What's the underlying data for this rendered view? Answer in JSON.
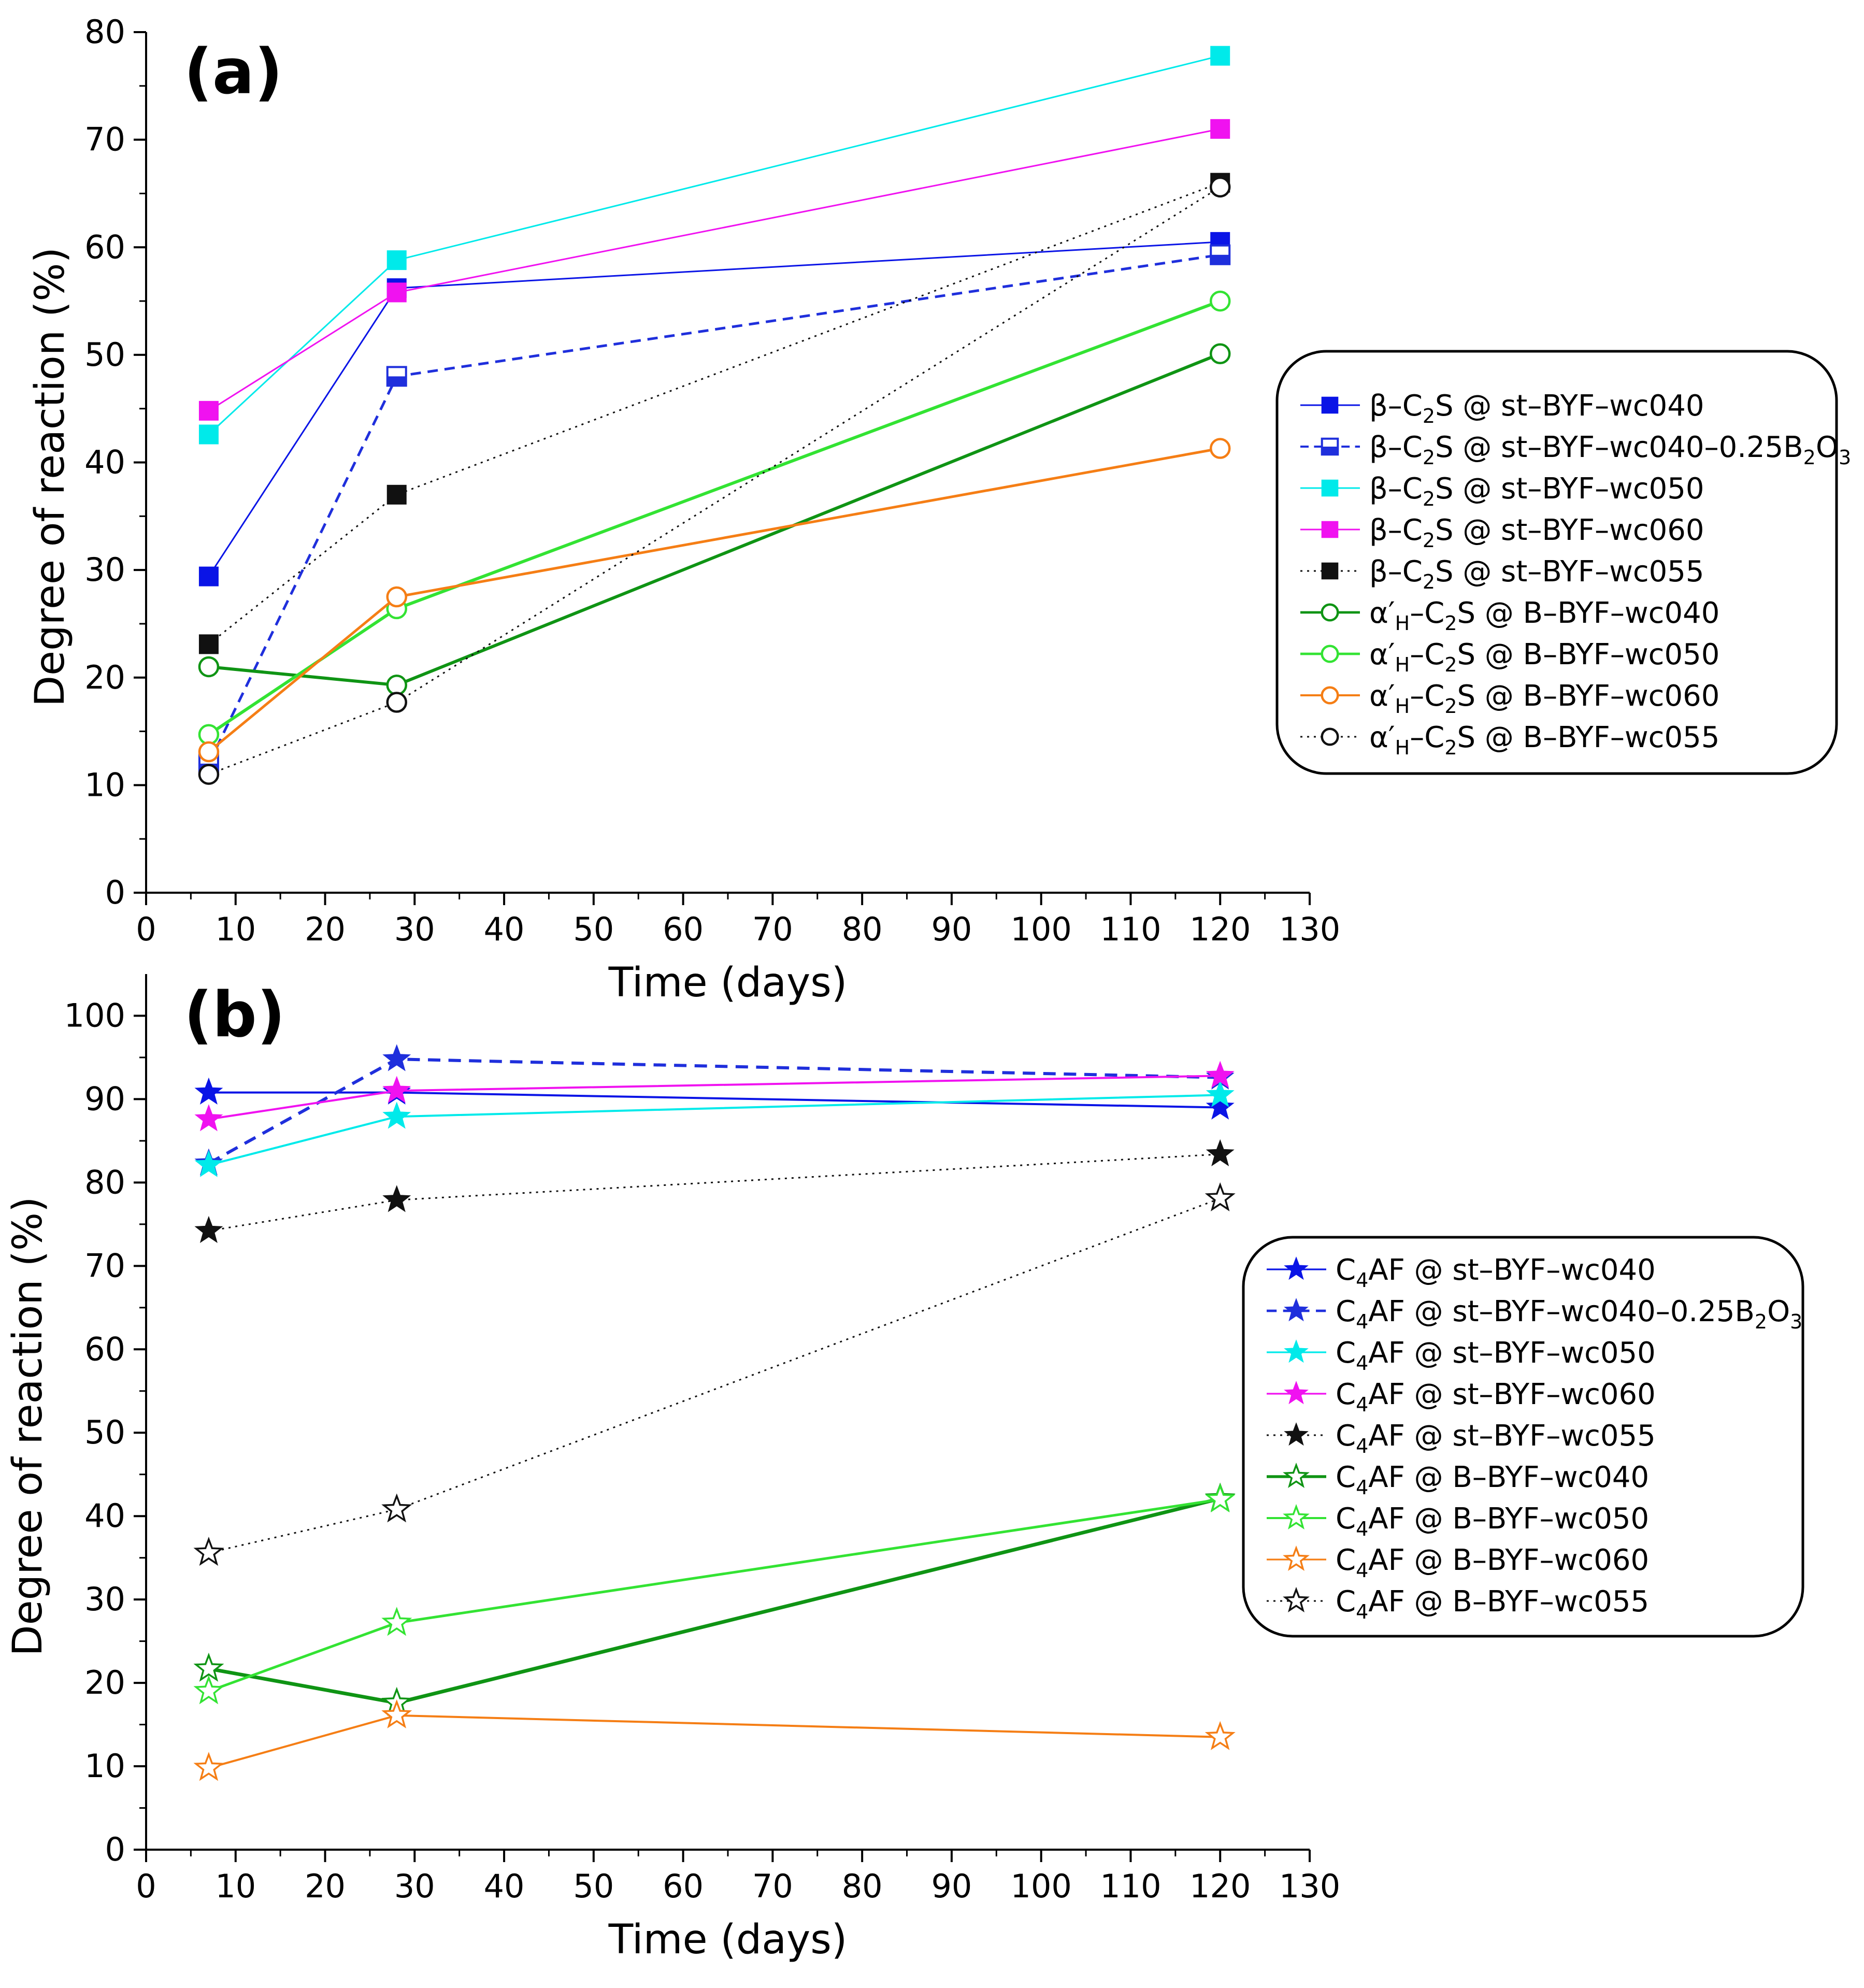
{
  "chart_data": [
    {
      "type": "line",
      "panel_label": "(a)",
      "xlabel": "Time (days)",
      "ylabel": "Degree of reaction (%)",
      "xlim": [
        0,
        130
      ],
      "ylim": [
        0,
        80
      ],
      "xticks": [
        0,
        10,
        20,
        30,
        40,
        50,
        60,
        70,
        80,
        90,
        100,
        110,
        120,
        130
      ],
      "yticks": [
        0,
        10,
        20,
        30,
        40,
        50,
        60,
        70,
        80
      ],
      "x": [
        7,
        28,
        120
      ],
      "legend_position": "right",
      "series": [
        {
          "name": "β–C2S @ st–BYF–wc040",
          "label_parts": [
            "β–C",
            "2",
            "S @ st–BYF–wc040"
          ],
          "values": [
            29.4,
            56.2,
            60.5
          ],
          "color": "#0a14e6",
          "marker": "square",
          "fill": "full",
          "line": "solid",
          "width": 3
        },
        {
          "name": "β–C2S @ st–BYF–wc040–0.25B2O3",
          "label_parts": [
            "β–C",
            "2",
            "S @ st–BYF–wc040–0.25B",
            "2",
            "O",
            "3"
          ],
          "values": [
            12.0,
            48.0,
            59.3
          ],
          "color": "#1f2fdc",
          "marker": "square",
          "fill": "half",
          "line": "dash",
          "width": 5
        },
        {
          "name": "β–C2S @ st–BYF–wc050",
          "label_parts": [
            "β–C",
            "2",
            "S @ st–BYF–wc050"
          ],
          "values": [
            42.6,
            58.8,
            77.8
          ],
          "color": "#00eaea",
          "marker": "square",
          "fill": "full",
          "line": "solid",
          "width": 3
        },
        {
          "name": "β–C2S @ st–BYF–wc060",
          "label_parts": [
            "β–C",
            "2",
            "S @ st–BYF–wc060"
          ],
          "values": [
            44.8,
            55.8,
            71.0
          ],
          "color": "#f012f0",
          "marker": "square",
          "fill": "full",
          "line": "solid",
          "width": 3
        },
        {
          "name": "β–C2S @ st–BYF–wc055",
          "label_parts": [
            "β–C",
            "2",
            "S @ st–BYF–wc055"
          ],
          "values": [
            23.1,
            37.0,
            66.0
          ],
          "color": "#111111",
          "marker": "square",
          "fill": "full",
          "line": "dot",
          "width": 3
        },
        {
          "name": "α'H–C2S @ B–BYF–wc040",
          "label_parts": [
            "α′",
            "H",
            "–C",
            "2",
            "S @ B–BYF–wc040"
          ],
          "values": [
            21.0,
            19.3,
            50.1
          ],
          "color": "#0f9414",
          "marker": "circle",
          "fill": "open",
          "line": "solid",
          "width": 6
        },
        {
          "name": "α'H–C2S @ B–BYF–wc050",
          "label_parts": [
            "α′",
            "H",
            "–C",
            "2",
            "S @ B–BYF–wc050"
          ],
          "values": [
            14.7,
            26.4,
            55.0
          ],
          "color": "#33e333",
          "marker": "circle",
          "fill": "open",
          "line": "solid",
          "width": 6
        },
        {
          "name": "α'H–C2S @ B–BYF–wc060",
          "label_parts": [
            "α′",
            "H",
            "–C",
            "2",
            "S @ B–BYF–wc060"
          ],
          "values": [
            13.1,
            27.5,
            41.3
          ],
          "color": "#f57e15",
          "marker": "circle",
          "fill": "open",
          "line": "solid",
          "width": 5
        },
        {
          "name": "α'H–C2S @ B–BYF–wc055",
          "label_parts": [
            "α′",
            "H",
            "–C",
            "2",
            "S @ B–BYF–wc055"
          ],
          "values": [
            11.0,
            17.7,
            65.6
          ],
          "color": "#111111",
          "marker": "circle",
          "fill": "open",
          "line": "dot",
          "width": 3
        }
      ]
    },
    {
      "type": "line",
      "panel_label": "(b)",
      "xlabel": "Time (days)",
      "ylabel": "Degree of reaction (%)",
      "xlim": [
        0,
        130
      ],
      "ylim": [
        0,
        105
      ],
      "xticks": [
        0,
        10,
        20,
        30,
        40,
        50,
        60,
        70,
        80,
        90,
        100,
        110,
        120,
        130
      ],
      "yticks": [
        0,
        10,
        20,
        30,
        40,
        50,
        60,
        70,
        80,
        90,
        100
      ],
      "x": [
        7,
        28,
        120
      ],
      "legend_position": "right",
      "series": [
        {
          "name": "C4AF @ st–BYF–wc040",
          "label_parts": [
            "C",
            "4",
            "AF @ st–BYF–wc040"
          ],
          "values": [
            90.8,
            90.8,
            89.0
          ],
          "color": "#0a14e6",
          "marker": "star",
          "fill": "full",
          "line": "solid",
          "width": 4
        },
        {
          "name": "C4AF @ st–BYF–wc040–0.25B2O3",
          "label_parts": [
            "C",
            "4",
            "AF @ st–BYF–wc040–0.25B",
            "2",
            "O",
            "3"
          ],
          "values": [
            82.3,
            94.8,
            92.6
          ],
          "color": "#1f2fdc",
          "marker": "star",
          "fill": "half",
          "line": "dash",
          "width": 6
        },
        {
          "name": "C4AF @ st–BYF–wc050",
          "label_parts": [
            "C",
            "4",
            "AF @ st–BYF–wc050"
          ],
          "values": [
            82.1,
            87.9,
            90.5
          ],
          "color": "#00eaea",
          "marker": "star",
          "fill": "full",
          "line": "solid",
          "width": 4
        },
        {
          "name": "C4AF @ st–BYF–wc060",
          "label_parts": [
            "C",
            "4",
            "AF @ st–BYF–wc060"
          ],
          "values": [
            87.6,
            91.0,
            92.8
          ],
          "color": "#f012f0",
          "marker": "star",
          "fill": "full",
          "line": "solid",
          "width": 4
        },
        {
          "name": "C4AF @ st–BYF–wc055",
          "label_parts": [
            "C",
            "4",
            "AF @ st–BYF–wc055"
          ],
          "values": [
            74.2,
            77.9,
            83.4
          ],
          "color": "#111111",
          "marker": "star",
          "fill": "full",
          "line": "dot",
          "width": 3
        },
        {
          "name": "C4AF @ B–BYF–wc040",
          "label_parts": [
            "C",
            "4",
            "AF @ B–BYF–wc040"
          ],
          "values": [
            21.7,
            17.6,
            42.1
          ],
          "color": "#0f9414",
          "marker": "star",
          "fill": "open",
          "line": "solid",
          "width": 7
        },
        {
          "name": "C4AF @ B–BYF–wc050",
          "label_parts": [
            "C",
            "4",
            "AF @ B–BYF–wc050"
          ],
          "values": [
            19.0,
            27.2,
            42.0
          ],
          "color": "#33e333",
          "marker": "star",
          "fill": "open",
          "line": "solid",
          "width": 5
        },
        {
          "name": "C4AF @ B–BYF–wc060",
          "label_parts": [
            "C",
            "4",
            "AF @ B–BYF–wc060"
          ],
          "values": [
            9.8,
            16.1,
            13.5
          ],
          "color": "#f57e15",
          "marker": "star",
          "fill": "open",
          "line": "solid",
          "width": 4
        },
        {
          "name": "C4AF @ B–BYF–wc055",
          "label_parts": [
            "C",
            "4",
            "AF @ B–BYF–wc055"
          ],
          "values": [
            35.6,
            40.8,
            78.1
          ],
          "color": "#111111",
          "marker": "star",
          "fill": "open",
          "line": "dot",
          "width": 3
        }
      ]
    }
  ]
}
